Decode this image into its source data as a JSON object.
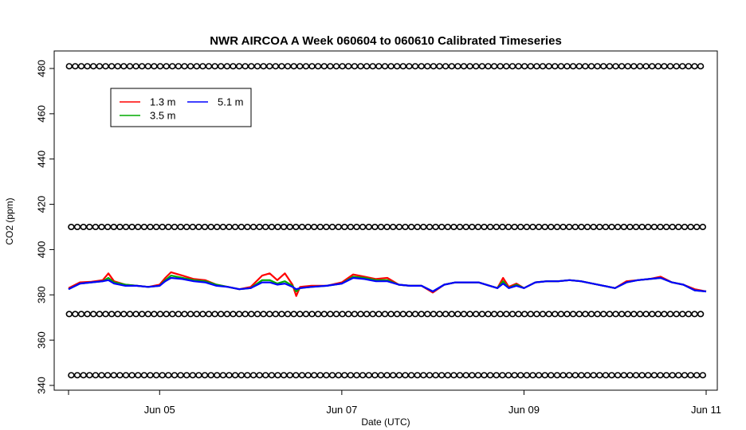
{
  "chart_data": {
    "type": "line",
    "title": "NWR AIRCOA A  Week 060604 to 060610  Calibrated Timeseries",
    "xlabel": "Date (UTC)",
    "ylabel": "CO2 (ppm)",
    "xlim": [
      "2006-06-04T00:00",
      "2006-06-11T00:00"
    ],
    "ylim": [
      338,
      484
    ],
    "x_ticks": [
      {
        "value": "2006-06-05",
        "label": "Jun 05"
      },
      {
        "value": "2006-06-07",
        "label": "Jun 07"
      },
      {
        "value": "2006-06-09",
        "label": "Jun 09"
      },
      {
        "value": "2006-06-11",
        "label": "Jun 11"
      }
    ],
    "y_ticks": [
      340,
      360,
      380,
      400,
      420,
      440,
      460,
      480
    ],
    "legend": {
      "placement": "top-left",
      "columns": 2
    },
    "series": [
      {
        "name": "1.3 m",
        "color": "#ff0000",
        "points": [
          [
            "2006-06-04T00:00",
            383
          ],
          [
            "2006-06-04T03:00",
            385.5
          ],
          [
            "2006-06-04T06:00",
            385.8
          ],
          [
            "2006-06-04T09:00",
            386.5
          ],
          [
            "2006-06-04T10:30",
            389.5
          ],
          [
            "2006-06-04T12:00",
            386
          ],
          [
            "2006-06-04T15:00",
            384.5
          ],
          [
            "2006-06-04T18:00",
            384
          ],
          [
            "2006-06-04T21:00",
            383.5
          ],
          [
            "2006-06-05T00:00",
            384.5
          ],
          [
            "2006-06-05T01:30",
            387.5
          ],
          [
            "2006-06-05T03:00",
            390
          ],
          [
            "2006-06-05T06:00",
            388.5
          ],
          [
            "2006-06-05T09:00",
            387
          ],
          [
            "2006-06-05T12:00",
            386.5
          ],
          [
            "2006-06-05T15:00",
            384.5
          ],
          [
            "2006-06-05T18:00",
            383.5
          ],
          [
            "2006-06-05T21:00",
            382.5
          ],
          [
            "2006-06-06T00:00",
            383.5
          ],
          [
            "2006-06-06T03:00",
            388.5
          ],
          [
            "2006-06-06T05:00",
            389.5
          ],
          [
            "2006-06-06T07:00",
            386.5
          ],
          [
            "2006-06-06T09:00",
            389.5
          ],
          [
            "2006-06-06T11:00",
            384.5
          ],
          [
            "2006-06-06T12:00",
            379.5
          ],
          [
            "2006-06-06T13:00",
            383.5
          ],
          [
            "2006-06-06T16:00",
            384
          ],
          [
            "2006-06-06T20:00",
            384
          ],
          [
            "2006-06-07T00:00",
            385.5
          ],
          [
            "2006-06-07T03:00",
            389
          ],
          [
            "2006-06-07T06:00",
            388
          ],
          [
            "2006-06-07T09:00",
            387
          ],
          [
            "2006-06-07T12:00",
            387.5
          ],
          [
            "2006-06-07T15:00",
            384.5
          ],
          [
            "2006-06-07T18:00",
            384
          ],
          [
            "2006-06-07T21:00",
            384
          ],
          [
            "2006-06-08T00:00",
            381
          ],
          [
            "2006-06-08T03:00",
            384.5
          ],
          [
            "2006-06-08T06:00",
            385.5
          ],
          [
            "2006-06-08T09:00",
            385.5
          ],
          [
            "2006-06-08T12:00",
            385.5
          ],
          [
            "2006-06-08T15:00",
            384
          ],
          [
            "2006-06-08T17:00",
            383
          ],
          [
            "2006-06-08T18:30",
            387.5
          ],
          [
            "2006-06-08T20:00",
            383.5
          ],
          [
            "2006-06-08T22:00",
            385
          ],
          [
            "2006-06-09T00:00",
            383
          ],
          [
            "2006-06-09T03:00",
            385.5
          ],
          [
            "2006-06-09T06:00",
            386
          ],
          [
            "2006-06-09T09:00",
            386
          ],
          [
            "2006-06-09T12:00",
            386.5
          ],
          [
            "2006-06-09T15:00",
            386
          ],
          [
            "2006-06-09T18:00",
            385
          ],
          [
            "2006-06-09T21:00",
            384
          ],
          [
            "2006-06-10T00:00",
            383
          ],
          [
            "2006-06-10T03:00",
            386
          ],
          [
            "2006-06-10T06:00",
            386.5
          ],
          [
            "2006-06-10T09:00",
            387
          ],
          [
            "2006-06-10T12:00",
            388
          ],
          [
            "2006-06-10T15:00",
            385.5
          ],
          [
            "2006-06-10T18:00",
            384.5
          ],
          [
            "2006-06-10T21:00",
            382.5
          ],
          [
            "2006-06-11T00:00",
            381.5
          ]
        ]
      },
      {
        "name": "3.5 m",
        "color": "#00aa00",
        "points": [
          [
            "2006-06-04T00:00",
            382.5
          ],
          [
            "2006-06-04T03:00",
            385
          ],
          [
            "2006-06-04T06:00",
            385.5
          ],
          [
            "2006-06-04T09:00",
            386
          ],
          [
            "2006-06-04T10:30",
            387.5
          ],
          [
            "2006-06-04T12:00",
            385.5
          ],
          [
            "2006-06-04T15:00",
            384.5
          ],
          [
            "2006-06-04T18:00",
            384
          ],
          [
            "2006-06-04T21:00",
            383.5
          ],
          [
            "2006-06-05T00:00",
            384
          ],
          [
            "2006-06-05T01:30",
            386.5
          ],
          [
            "2006-06-05T03:00",
            388.5
          ],
          [
            "2006-06-05T06:00",
            387.5
          ],
          [
            "2006-06-05T09:00",
            386.5
          ],
          [
            "2006-06-05T12:00",
            386
          ],
          [
            "2006-06-05T15:00",
            384.5
          ],
          [
            "2006-06-05T18:00",
            383.5
          ],
          [
            "2006-06-05T21:00",
            382.5
          ],
          [
            "2006-06-06T00:00",
            383
          ],
          [
            "2006-06-06T03:00",
            386.5
          ],
          [
            "2006-06-06T05:00",
            386.5
          ],
          [
            "2006-06-06T07:00",
            385
          ],
          [
            "2006-06-06T09:00",
            386
          ],
          [
            "2006-06-06T11:00",
            384
          ],
          [
            "2006-06-06T12:00",
            381.5
          ],
          [
            "2006-06-06T13:00",
            383
          ],
          [
            "2006-06-06T16:00",
            383.5
          ],
          [
            "2006-06-06T20:00",
            384
          ],
          [
            "2006-06-07T00:00",
            385
          ],
          [
            "2006-06-07T03:00",
            388
          ],
          [
            "2006-06-07T06:00",
            387.5
          ],
          [
            "2006-06-07T09:00",
            386.5
          ],
          [
            "2006-06-07T12:00",
            386.5
          ],
          [
            "2006-06-07T15:00",
            384.5
          ],
          [
            "2006-06-07T18:00",
            384
          ],
          [
            "2006-06-07T21:00",
            384
          ],
          [
            "2006-06-08T00:00",
            381.5
          ],
          [
            "2006-06-08T03:00",
            384.5
          ],
          [
            "2006-06-08T06:00",
            385.5
          ],
          [
            "2006-06-08T09:00",
            385.5
          ],
          [
            "2006-06-08T12:00",
            385.5
          ],
          [
            "2006-06-08T15:00",
            384
          ],
          [
            "2006-06-08T17:00",
            383
          ],
          [
            "2006-06-08T18:30",
            386
          ],
          [
            "2006-06-08T20:00",
            383
          ],
          [
            "2006-06-08T22:00",
            384.5
          ],
          [
            "2006-06-09T00:00",
            383
          ],
          [
            "2006-06-09T03:00",
            385.5
          ],
          [
            "2006-06-09T06:00",
            386
          ],
          [
            "2006-06-09T09:00",
            386
          ],
          [
            "2006-06-09T12:00",
            386.5
          ],
          [
            "2006-06-09T15:00",
            386
          ],
          [
            "2006-06-09T18:00",
            385
          ],
          [
            "2006-06-09T21:00",
            384
          ],
          [
            "2006-06-10T00:00",
            383
          ],
          [
            "2006-06-10T03:00",
            385.5
          ],
          [
            "2006-06-10T06:00",
            386.5
          ],
          [
            "2006-06-10T09:00",
            387
          ],
          [
            "2006-06-10T12:00",
            387.5
          ],
          [
            "2006-06-10T15:00",
            385.5
          ],
          [
            "2006-06-10T18:00",
            384.5
          ],
          [
            "2006-06-10T21:00",
            382
          ],
          [
            "2006-06-11T00:00",
            381.5
          ]
        ]
      },
      {
        "name": "5.1 m",
        "color": "#0000ff",
        "points": [
          [
            "2006-06-04T00:00",
            382.5
          ],
          [
            "2006-06-04T03:00",
            385
          ],
          [
            "2006-06-04T06:00",
            385.5
          ],
          [
            "2006-06-04T09:00",
            386
          ],
          [
            "2006-06-04T10:30",
            386.5
          ],
          [
            "2006-06-04T12:00",
            385
          ],
          [
            "2006-06-04T15:00",
            384
          ],
          [
            "2006-06-04T18:00",
            384
          ],
          [
            "2006-06-04T21:00",
            383.5
          ],
          [
            "2006-06-05T00:00",
            384
          ],
          [
            "2006-06-05T01:30",
            386
          ],
          [
            "2006-06-05T03:00",
            387.5
          ],
          [
            "2006-06-05T06:00",
            387
          ],
          [
            "2006-06-05T09:00",
            386
          ],
          [
            "2006-06-05T12:00",
            385.5
          ],
          [
            "2006-06-05T15:00",
            384
          ],
          [
            "2006-06-05T18:00",
            383.5
          ],
          [
            "2006-06-05T21:00",
            382.5
          ],
          [
            "2006-06-06T00:00",
            383
          ],
          [
            "2006-06-06T03:00",
            385.5
          ],
          [
            "2006-06-06T05:00",
            385.5
          ],
          [
            "2006-06-06T07:00",
            384.5
          ],
          [
            "2006-06-06T09:00",
            385
          ],
          [
            "2006-06-06T11:00",
            383.5
          ],
          [
            "2006-06-06T12:00",
            382.5
          ],
          [
            "2006-06-06T13:00",
            383
          ],
          [
            "2006-06-06T16:00",
            383.5
          ],
          [
            "2006-06-06T20:00",
            384
          ],
          [
            "2006-06-07T00:00",
            385
          ],
          [
            "2006-06-07T03:00",
            387.5
          ],
          [
            "2006-06-07T06:00",
            387
          ],
          [
            "2006-06-07T09:00",
            386
          ],
          [
            "2006-06-07T12:00",
            386
          ],
          [
            "2006-06-07T15:00",
            384.5
          ],
          [
            "2006-06-07T18:00",
            384
          ],
          [
            "2006-06-07T21:00",
            384
          ],
          [
            "2006-06-08T00:00",
            381.5
          ],
          [
            "2006-06-08T03:00",
            384.5
          ],
          [
            "2006-06-08T06:00",
            385.5
          ],
          [
            "2006-06-08T09:00",
            385.5
          ],
          [
            "2006-06-08T12:00",
            385.5
          ],
          [
            "2006-06-08T15:00",
            384
          ],
          [
            "2006-06-08T17:00",
            383
          ],
          [
            "2006-06-08T18:30",
            385
          ],
          [
            "2006-06-08T20:00",
            383
          ],
          [
            "2006-06-08T22:00",
            384
          ],
          [
            "2006-06-09T00:00",
            383
          ],
          [
            "2006-06-09T03:00",
            385.5
          ],
          [
            "2006-06-09T06:00",
            386
          ],
          [
            "2006-06-09T09:00",
            386
          ],
          [
            "2006-06-09T12:00",
            386.5
          ],
          [
            "2006-06-09T15:00",
            386
          ],
          [
            "2006-06-09T18:00",
            385
          ],
          [
            "2006-06-09T21:00",
            384
          ],
          [
            "2006-06-10T00:00",
            383
          ],
          [
            "2006-06-10T03:00",
            385.5
          ],
          [
            "2006-06-10T06:00",
            386.5
          ],
          [
            "2006-06-10T09:00",
            387
          ],
          [
            "2006-06-10T12:00",
            387.5
          ],
          [
            "2006-06-10T15:00",
            385.5
          ],
          [
            "2006-06-10T18:00",
            384.5
          ],
          [
            "2006-06-10T21:00",
            382
          ],
          [
            "2006-06-11T00:00",
            381.5
          ]
        ]
      }
    ],
    "reference_points": {
      "marker": "open-circle",
      "color": "#000000",
      "levels": [
        481,
        410,
        371.5,
        344.5
      ],
      "approx_interval_hours": 1.6
    }
  }
}
